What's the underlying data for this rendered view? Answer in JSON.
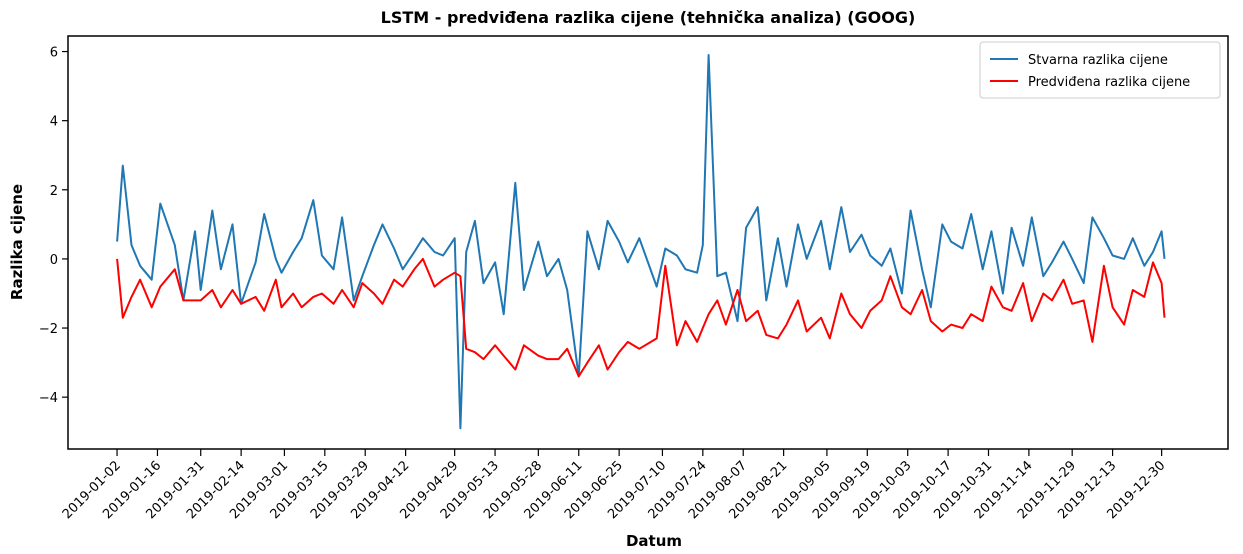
{
  "chart_data": {
    "type": "line",
    "title": "LSTM - predviđena razlika cijene (tehnička analiza) (GOOG)",
    "xlabel": "Datum",
    "ylabel": "Razlika cijene",
    "legend": "upper right",
    "x": [
      "2019-01-02",
      "2019-01-04",
      "2019-01-07",
      "2019-01-10",
      "2019-01-14",
      "2019-01-17",
      "2019-01-22",
      "2019-01-25",
      "2019-01-29",
      "2019-01-31",
      "2019-02-04",
      "2019-02-07",
      "2019-02-11",
      "2019-02-14",
      "2019-02-19",
      "2019-02-22",
      "2019-02-26",
      "2019-02-28",
      "2019-03-04",
      "2019-03-07",
      "2019-03-11",
      "2019-03-14",
      "2019-03-18",
      "2019-03-21",
      "2019-03-25",
      "2019-03-28",
      "2019-04-01",
      "2019-04-04",
      "2019-04-08",
      "2019-04-11",
      "2019-04-15",
      "2019-04-18",
      "2019-04-22",
      "2019-04-25",
      "2019-04-29",
      "2019-05-01",
      "2019-05-03",
      "2019-05-06",
      "2019-05-09",
      "2019-05-13",
      "2019-05-16",
      "2019-05-20",
      "2019-05-23",
      "2019-05-28",
      "2019-05-31",
      "2019-06-04",
      "2019-06-07",
      "2019-06-11",
      "2019-06-14",
      "2019-06-18",
      "2019-06-21",
      "2019-06-25",
      "2019-06-28",
      "2019-07-02",
      "2019-07-08",
      "2019-07-11",
      "2019-07-15",
      "2019-07-18",
      "2019-07-22",
      "2019-07-24",
      "2019-07-26",
      "2019-07-29",
      "2019-08-01",
      "2019-08-05",
      "2019-08-08",
      "2019-08-12",
      "2019-08-15",
      "2019-08-19",
      "2019-08-22",
      "2019-08-26",
      "2019-08-29",
      "2019-09-03",
      "2019-09-06",
      "2019-09-10",
      "2019-09-13",
      "2019-09-17",
      "2019-09-20",
      "2019-09-24",
      "2019-09-27",
      "2019-10-01",
      "2019-10-04",
      "2019-10-08",
      "2019-10-11",
      "2019-10-15",
      "2019-10-18",
      "2019-10-22",
      "2019-10-25",
      "2019-10-29",
      "2019-11-01",
      "2019-11-05",
      "2019-11-08",
      "2019-11-12",
      "2019-11-15",
      "2019-11-19",
      "2019-11-22",
      "2019-11-26",
      "2019-11-29",
      "2019-12-03",
      "2019-12-06",
      "2019-12-10",
      "2019-12-13",
      "2019-12-17",
      "2019-12-20",
      "2019-12-24",
      "2019-12-27",
      "2019-12-30",
      "2019-12-31"
    ],
    "series": [
      {
        "name": "Stvarna razlika cijene",
        "color": "#1f77b4",
        "values": [
          0.5,
          2.7,
          0.4,
          -0.2,
          -0.6,
          1.6,
          0.4,
          -1.2,
          0.8,
          -0.9,
          1.4,
          -0.3,
          1.0,
          -1.3,
          -0.1,
          1.3,
          0.0,
          -0.4,
          0.2,
          0.6,
          1.7,
          0.1,
          -0.3,
          1.2,
          -1.2,
          -0.5,
          0.4,
          1.0,
          0.3,
          -0.3,
          0.2,
          0.6,
          0.2,
          0.1,
          0.6,
          -4.9,
          0.2,
          1.1,
          -0.7,
          -0.1,
          -1.6,
          2.2,
          -0.9,
          0.5,
          -0.5,
          0.0,
          -0.9,
          -3.4,
          0.8,
          -0.3,
          1.1,
          0.5,
          -0.1,
          0.6,
          -0.8,
          0.3,
          0.1,
          -0.3,
          -0.4,
          0.4,
          5.9,
          -0.5,
          -0.4,
          -1.8,
          0.9,
          1.5,
          -1.2,
          0.6,
          -0.8,
          1.0,
          0.0,
          1.1,
          -0.3,
          1.5,
          0.2,
          0.7,
          0.1,
          -0.2,
          0.3,
          -1.0,
          1.4,
          -0.3,
          -1.4,
          1.0,
          0.5,
          0.3,
          1.3,
          -0.3,
          0.8,
          -1.0,
          0.9,
          -0.2,
          1.2,
          -0.5,
          -0.1,
          0.5,
          0.0,
          -0.7,
          1.2,
          0.6,
          0.1,
          0.0,
          0.6,
          -0.2,
          0.2,
          0.8,
          0.0
        ]
      },
      {
        "name": "Predviđena razlika cijene",
        "color": "#ff0000",
        "values": [
          0.0,
          -1.7,
          -1.1,
          -0.6,
          -1.4,
          -0.8,
          -0.3,
          -1.2,
          -1.2,
          -1.2,
          -0.9,
          -1.4,
          -0.9,
          -1.3,
          -1.1,
          -1.5,
          -0.6,
          -1.4,
          -1.0,
          -1.4,
          -1.1,
          -1.0,
          -1.3,
          -0.9,
          -1.4,
          -0.7,
          -1.0,
          -1.3,
          -0.6,
          -0.8,
          -0.3,
          0.0,
          -0.8,
          -0.6,
          -0.4,
          -0.5,
          -2.6,
          -2.7,
          -2.9,
          -2.5,
          -2.8,
          -3.2,
          -2.5,
          -2.8,
          -2.9,
          -2.9,
          -2.6,
          -3.4,
          -3.0,
          -2.5,
          -3.2,
          -2.7,
          -2.4,
          -2.6,
          -2.3,
          -0.2,
          -2.5,
          -1.8,
          -2.4,
          -2.0,
          -1.6,
          -1.2,
          -1.9,
          -0.9,
          -1.8,
          -1.5,
          -2.2,
          -2.3,
          -1.9,
          -1.2,
          -2.1,
          -1.7,
          -2.3,
          -1.0,
          -1.6,
          -2.0,
          -1.5,
          -1.2,
          -0.5,
          -1.4,
          -1.6,
          -0.9,
          -1.8,
          -2.1,
          -1.9,
          -2.0,
          -1.6,
          -1.8,
          -0.8,
          -1.4,
          -1.5,
          -0.7,
          -1.8,
          -1.0,
          -1.2,
          -0.6,
          -1.3,
          -1.2,
          -2.4,
          -0.2,
          -1.4,
          -1.9,
          -0.9,
          -1.1,
          -0.1,
          -0.7,
          -1.7
        ]
      }
    ],
    "xlim": [
      "2018-12-16",
      "2020-01-22"
    ],
    "xticks": [
      "2019-01-02",
      "2019-01-16",
      "2019-01-31",
      "2019-02-14",
      "2019-03-01",
      "2019-03-15",
      "2019-03-29",
      "2019-04-12",
      "2019-04-29",
      "2019-05-13",
      "2019-05-28",
      "2019-06-11",
      "2019-06-25",
      "2019-07-10",
      "2019-07-24",
      "2019-08-07",
      "2019-08-21",
      "2019-09-05",
      "2019-09-19",
      "2019-10-03",
      "2019-10-17",
      "2019-10-31",
      "2019-11-14",
      "2019-11-29",
      "2019-12-13",
      "2019-12-30"
    ],
    "ylim": [
      -5.5,
      6.45
    ],
    "yticks": [
      {
        "value": -4,
        "label": "−4"
      },
      {
        "value": -2,
        "label": "−2"
      },
      0,
      2,
      4,
      6
    ],
    "grid": false
  }
}
